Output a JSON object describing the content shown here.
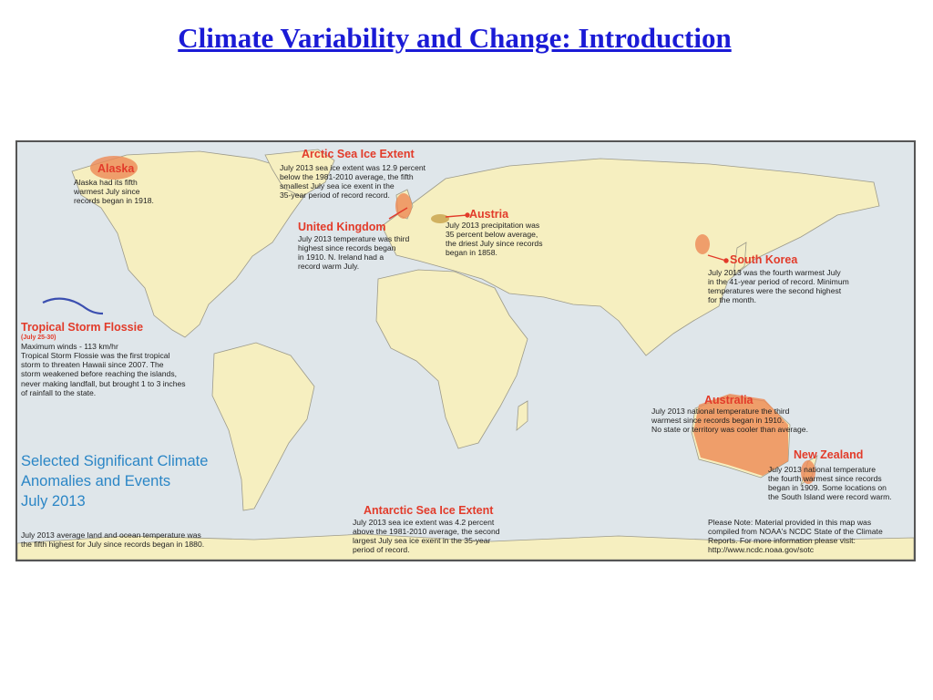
{
  "slide": {
    "title": "Climate Variability and Change: Introduction"
  },
  "map": {
    "colors": {
      "ocean": "#dfe6ea",
      "land": "#f6efc0",
      "border": "#9c9a8a",
      "anomaly": "#ee8a55",
      "text_heading": "#e23b2a",
      "title_blue": "#2b86c6",
      "storm_track": "#3b4fb0"
    },
    "heading": {
      "line1": "Selected Significant Climate",
      "line2": "Anomalies and Events",
      "line3": "July 2013"
    },
    "summary": "July 2013 average land and ocean temperature was\nthe fifth highest for July since records began in 1880.",
    "annotations": {
      "alaska": {
        "title": "Alaska",
        "body": "Alaska had its fifth\nwarmest July since\nrecords began in 1918."
      },
      "arctic": {
        "title": "Arctic Sea Ice Extent",
        "body": "July 2013 sea ice extent was 12.9 percent\nbelow the 1981-2010 average, the fifth\nsmallest July sea ice exent in the\n35-year period of record record."
      },
      "uk": {
        "title": "United Kingdom",
        "body": "July 2013 temperature was third\nhighest since records began\nin 1910. N. Ireland had a\nrecord warm July."
      },
      "austria": {
        "title": "Austria",
        "body": "July 2013 precipitation was\n35 percent below average,\nthe driest July since records\nbegan in 1858."
      },
      "south_korea": {
        "title": "South Korea",
        "body": "July 2013 was the fourth warmest July\nin the 41-year period of record. Minimum\ntemperatures were the second highest\nfor the month."
      },
      "flossie": {
        "title": "Tropical Storm Flossie",
        "dates": "(July 25-30)",
        "body": "Maximum winds - 113 km/hr\nTropical Storm Flossie was the first tropical\nstorm to threaten Hawaii since 2007. The\nstorm weakened before reaching the islands,\nnever making landfall, but brought 1 to 3 inches\nof rainfall to the state."
      },
      "australia": {
        "title": "Australia",
        "body": "July 2013 national temperature the third\nwarmest since records began in 1910.\nNo state or territory was cooler than average."
      },
      "new_zealand": {
        "title": "New Zealand",
        "body": "July 2013 national temperature\nthe fourth warmest since records\nbegan in 1909. Some locations on\nthe South Island were record warm."
      },
      "antarctic": {
        "title": "Antarctic Sea Ice Extent",
        "body": "July 2013 sea ice extent was 4.2 percent\nabove the 1981-2010 average, the second\nlargest July sea ice exent in the 35-year\nperiod of record."
      },
      "note": {
        "body": "Please Note: Material provided in this map was\ncompiled from NOAA's NCDC State of the Climate\nReports. For more information please visit:\nhttp://www.ncdc.noaa.gov/sotc"
      }
    }
  }
}
